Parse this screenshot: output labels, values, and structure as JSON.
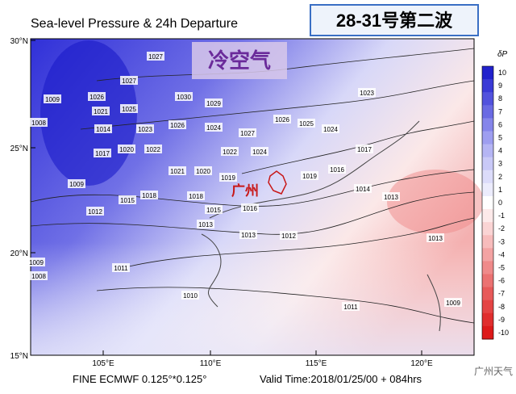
{
  "header": {
    "title": "Sea-level Pressure & 24h Departure",
    "badge": "28-31号第二波"
  },
  "annotations": {
    "cold_air": "冷空气",
    "city": "广州"
  },
  "map": {
    "lat_labels": [
      "30°N",
      "25°N",
      "20°N",
      "15°N"
    ],
    "lon_labels": [
      "105°E",
      "110°E",
      "115°E",
      "120°E"
    ],
    "isobar_labels": [
      "1027",
      "1027",
      "1026",
      "1021",
      "1025",
      "1014",
      "1023",
      "1026",
      "1024",
      "1027",
      "1025",
      "1024",
      "1023",
      "1022",
      "1017",
      "1020",
      "1022",
      "1024",
      "1021",
      "1020",
      "1019",
      "1019",
      "1018",
      "1018",
      "1015",
      "1016",
      "1014",
      "1013",
      "1013",
      "1012",
      "1013",
      "1011",
      "1010",
      "1011",
      "1009",
      "1009",
      "1008",
      "1030",
      "1029",
      "1026",
      "1008",
      "1009",
      "1017",
      "1013",
      "1009",
      "1016",
      "1015",
      "1012"
    ]
  },
  "colorbar": {
    "title": "δP",
    "ticks": [
      "10",
      "9",
      "8",
      "7",
      "6",
      "5",
      "4",
      "3",
      "2",
      "1",
      "0",
      "-1",
      "-2",
      "-3",
      "-4",
      "-5",
      "-6",
      "-7",
      "-8",
      "-9",
      "-10"
    ],
    "colors": [
      "#2222cc",
      "#3a3ad6",
      "#5252dd",
      "#6a6ae3",
      "#8585ea",
      "#9e9ef0",
      "#b5b5f4",
      "#c9c9f7",
      "#dcdcfa",
      "#ececfc",
      "#ffffff",
      "#fdeaea",
      "#fad4d4",
      "#f7bcbc",
      "#f3a3a3",
      "#ef8a8a",
      "#eb7272",
      "#e75a5a",
      "#e44444",
      "#e02e2e",
      "#dd1a1a"
    ]
  },
  "footer": {
    "model": "FINE ECMWF 0.125°*0.125°",
    "valid": "Valid Time:2018/01/25/00 + 084hrs",
    "watermark": "广州天气"
  }
}
